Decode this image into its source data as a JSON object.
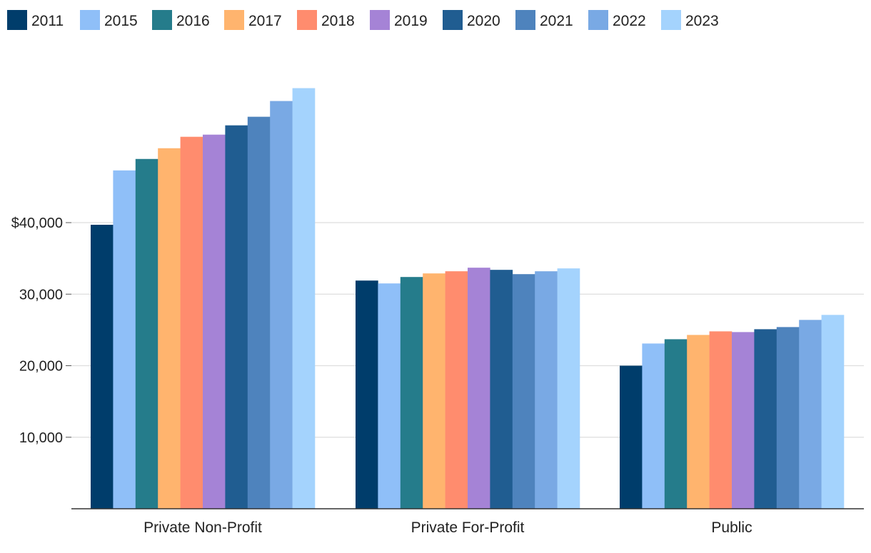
{
  "chart_data": {
    "type": "bar",
    "title": "",
    "xlabel": "",
    "ylabel": "",
    "ylim": [
      0,
      60000
    ],
    "y_ticks": [
      {
        "value": 10000,
        "label": "10,000"
      },
      {
        "value": 20000,
        "label": "20,000"
      },
      {
        "value": 30000,
        "label": "30,000"
      },
      {
        "value": 40000,
        "label": "$40,000"
      }
    ],
    "grid": true,
    "legend_position": "top-left",
    "categories": [
      "Private Non-Profit",
      "Private For-Profit",
      "Public"
    ],
    "series": [
      {
        "name": "2011",
        "color": "#003D6B",
        "values": [
          39700,
          31900,
          20000
        ]
      },
      {
        "name": "2015",
        "color": "#8FBFF8",
        "values": [
          47300,
          31500,
          23100
        ]
      },
      {
        "name": "2016",
        "color": "#257C8B",
        "values": [
          48900,
          32400,
          23700
        ]
      },
      {
        "name": "2017",
        "color": "#FFB46E",
        "values": [
          50400,
          32900,
          24300
        ]
      },
      {
        "name": "2018",
        "color": "#FF8C6E",
        "values": [
          52000,
          33200,
          24800
        ]
      },
      {
        "name": "2019",
        "color": "#A583D6",
        "values": [
          52300,
          33700,
          24700
        ]
      },
      {
        "name": "2020",
        "color": "#205D91",
        "values": [
          53600,
          33400,
          25100
        ]
      },
      {
        "name": "2021",
        "color": "#4E83BD",
        "values": [
          54800,
          32800,
          25400
        ]
      },
      {
        "name": "2022",
        "color": "#79A9E4",
        "values": [
          57000,
          33200,
          26400
        ]
      },
      {
        "name": "2023",
        "color": "#A4D3FD",
        "values": [
          58800,
          33600,
          27100
        ]
      }
    ]
  }
}
